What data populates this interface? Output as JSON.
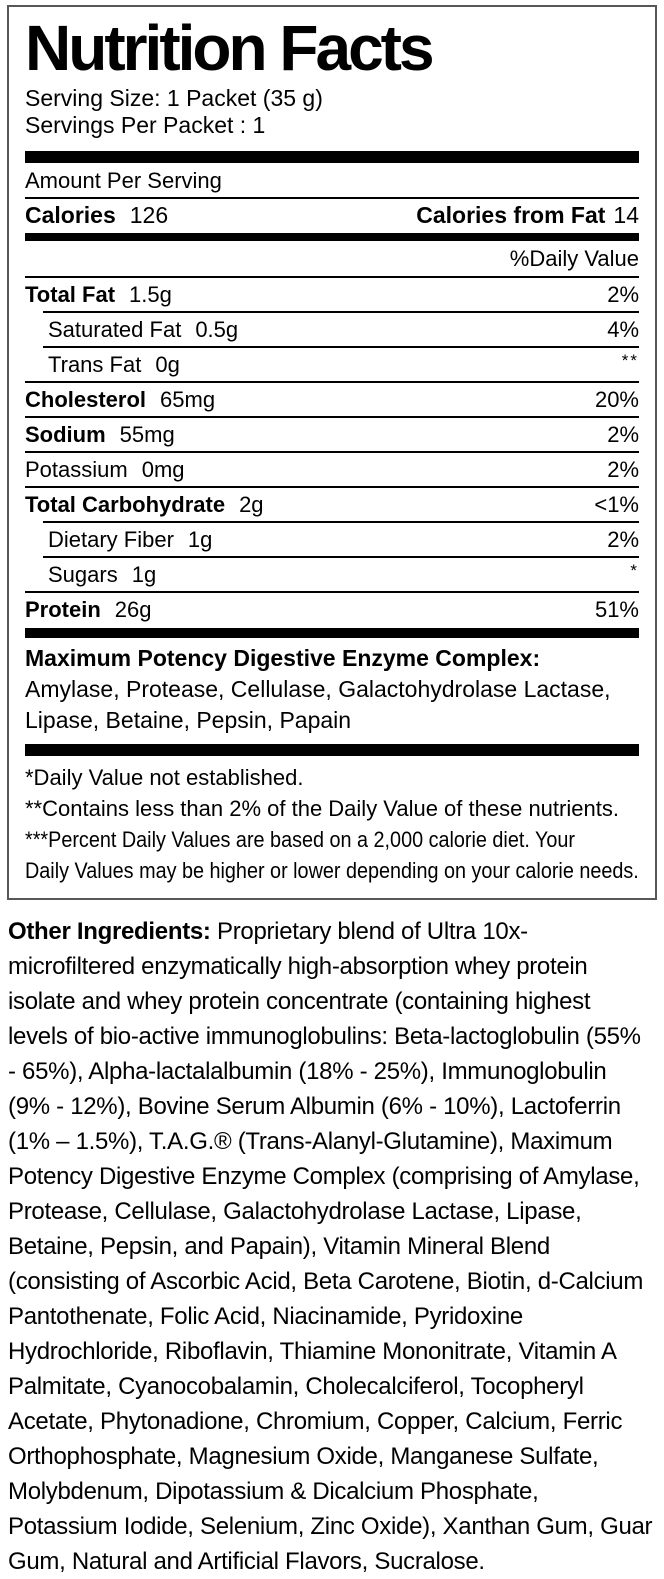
{
  "label": {
    "title": "Nutrition Facts",
    "serving_size": "Serving Size: 1 Packet (35 g)",
    "servings_per_packet": "Servings Per Packet : 1",
    "amount_per_serving": "Amount Per Serving",
    "calories_label": "Calories",
    "calories_value": "126",
    "calories_from_fat_label": "Calories from Fat",
    "calories_from_fat_value": "14",
    "daily_value_header": "%Daily Value",
    "rows": [
      {
        "name": "Total Fat",
        "amount": "1.5g",
        "dv": "2%"
      },
      {
        "name": "Saturated Fat",
        "amount": "0.5g",
        "dv": "4%"
      },
      {
        "name": "Trans Fat",
        "amount": "0g",
        "dv": "**"
      },
      {
        "name": "Cholesterol",
        "amount": "65mg",
        "dv": "20%"
      },
      {
        "name": "Sodium",
        "amount": "55mg",
        "dv": "2%"
      },
      {
        "name": "Potassium",
        "amount": "0mg",
        "dv": "2%"
      },
      {
        "name": "Total Carbohydrate",
        "amount": "2g",
        "dv": "<1%"
      },
      {
        "name": "Dietary Fiber",
        "amount": "1g",
        "dv": "2%"
      },
      {
        "name": "Sugars",
        "amount": "1g",
        "dv": "*"
      },
      {
        "name": "Protein",
        "amount": "26g",
        "dv": "51%"
      }
    ],
    "enzyme_complex": {
      "heading": "Maximum Potency Digestive Enzyme Complex:",
      "ingredients": "Amylase, Protease, Cellulase, Galactohydrolase Lactase, Lipase, Betaine, Pepsin, Papain"
    },
    "footnotes": [
      "*Daily Value not established.",
      "**Contains less than 2% of the Daily Value of these nutrients.",
      "***Percent Daily Values are based on a 2,000 calorie diet. Your",
      "Daily Values may be higher or lower depending on your calorie needs."
    ]
  },
  "other_ingredients": {
    "heading": "Other Ingredients:",
    "text": " Proprietary blend of Ultra 10x-microfiltered enzymatically high-absorption whey protein isolate and whey protein concentrate (containing highest levels of bio-active immunoglobulins: Beta-lactoglobulin (55% - 65%), Alpha-lactalalbumin (18% - 25%), Immunoglobulin (9% - 12%), Bovine Serum Albumin (6% - 10%), Lactoferrin (1% – 1.5%), T.A.G.® (Trans-Alanyl-Glutamine), Maximum Potency Digestive Enzyme Complex (comprising of Amylase, Protease, Cellulase, Galactohydrolase Lactase, Lipase, Betaine, Pepsin, and Papain), Vitamin Mineral Blend (consisting of Ascorbic Acid, Beta Carotene, Biotin, d-Calcium Pantothenate, Folic Acid, Niacinamide, Pyridoxine Hydrochloride, Riboflavin, Thiamine Mononitrate, Vitamin A Palmitate, Cyanocobalamin, Cholecalciferol, Tocopheryl Acetate, Phytonadione, Chromium, Copper, Calcium, Ferric Orthophosphate, Magnesium Oxide, Manganese Sulfate, Molybdenum, Dipotassium & Dicalcium Phosphate, Potassium Iodide, Selenium, Zinc Oxide), Xanthan Gum, Guar Gum, Natural and Artificial Flavors, Sucralose."
  },
  "colors": {
    "text": "#000000",
    "background": "#ffffff",
    "box_border": "#58585a",
    "bars": "#000000"
  }
}
